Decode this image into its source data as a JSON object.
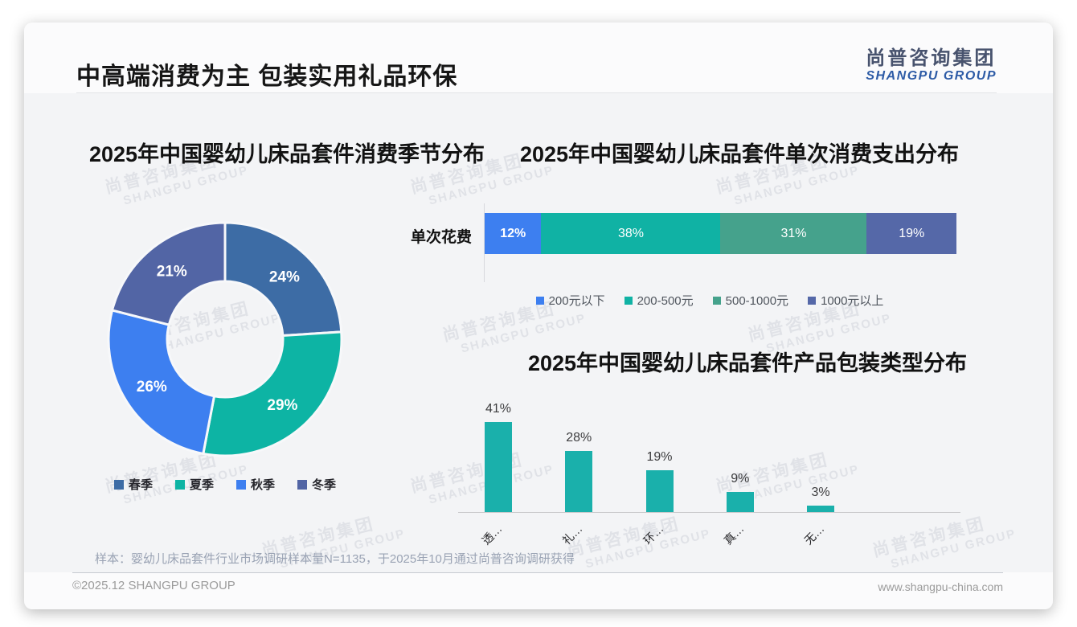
{
  "page": {
    "title": "中高端消费为主 包装实用礼品环保",
    "logo": {
      "cn": "尚普咨询集团",
      "en": "SHANGPU GROUP"
    },
    "watermark": {
      "cn": "尚普咨询集团",
      "en": "SHANGPU GROUP"
    },
    "sample_note": "样本：婴幼儿床品套件行业市场调研样本量N=1135，于2025年10月通过尚普咨询调研获得",
    "footer": {
      "copyright": "©2025.12 SHANGPU GROUP",
      "website": "www.shangpu-china.com"
    }
  },
  "chart_data": [
    {
      "type": "pie",
      "subtype": "donut",
      "title": "2025年中国婴幼儿床品套件消费季节分布",
      "labels": [
        "春季",
        "夏季",
        "秋季",
        "冬季"
      ],
      "values": [
        24,
        29,
        26,
        21
      ],
      "value_labels": [
        "24%",
        "29%",
        "26%",
        "21%"
      ],
      "colors": [
        "#3d6ca5",
        "#0db4a4",
        "#3d7ff0",
        "#5265a5"
      ],
      "start_angle_deg": 0,
      "direction": "clockwise",
      "inner_radius_ratio": 0.5,
      "legend_position": "bottom"
    },
    {
      "type": "bar",
      "subtype": "horizontal-stacked",
      "title": "2025年中国婴幼儿床品套件单次消费支出分布",
      "category": "单次花费",
      "series": [
        {
          "name": "200元以下",
          "value": 12,
          "label": "12%",
          "color": "#3d7ff0"
        },
        {
          "name": "200-500元",
          "value": 38,
          "label": "38%",
          "color": "#10b2a4"
        },
        {
          "name": "500-1000元",
          "value": 31,
          "label": "31%",
          "color": "#45a28c"
        },
        {
          "name": "1000元以上",
          "value": 19,
          "label": "19%",
          "color": "#5568a8"
        }
      ],
      "xlim": [
        0,
        100
      ],
      "legend_position": "bottom"
    },
    {
      "type": "bar",
      "subtype": "vertical",
      "title": "2025年中国婴幼儿床品套件产品包装类型分布",
      "categories": [
        "透…",
        "礼…",
        "环…",
        "真…",
        "无…"
      ],
      "values": [
        41,
        28,
        19,
        9,
        3
      ],
      "value_labels": [
        "41%",
        "28%",
        "19%",
        "9%",
        "3%"
      ],
      "bar_color": "#1ab0ab",
      "ylim": [
        0,
        45
      ],
      "grid": false,
      "tick_label_rotation_deg": -45
    }
  ]
}
